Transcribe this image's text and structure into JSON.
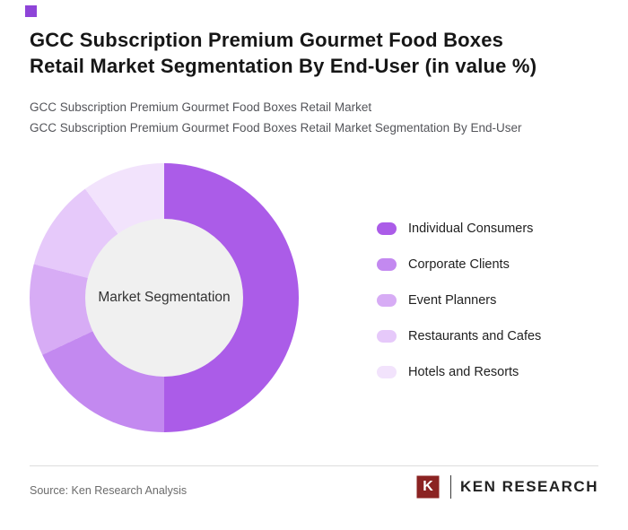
{
  "accent_color": "#8E44D8",
  "header": {
    "title_lines": [
      "GCC Subscription Premium Gourmet Food Boxes",
      "Retail Market Segmentation By End-User (in value %)"
    ],
    "subtitle_line1": "GCC Subscription Premium Gourmet Food Boxes Retail Market",
    "subtitle_line2": "GCC Subscription Premium Gourmet Food Boxes Retail Market Segmentation By End-User"
  },
  "chart_data": {
    "type": "pie",
    "donut": true,
    "center_label": "Market Segmentation",
    "categories": [
      "Individual Consumers",
      "Corporate Clients",
      "Event Planners",
      "Restaurants and Cafes",
      "Hotels and Resorts"
    ],
    "values": [
      50,
      18,
      11,
      11,
      10
    ],
    "colors": [
      "#AB5CE8",
      "#C389F0",
      "#D7ACF5",
      "#E6C9FA",
      "#F2E3FC"
    ],
    "hole_color": "#F0F0F0",
    "start_angle_deg": 0,
    "direction": "clockwise",
    "legend_position": "right",
    "value_labels_shown": false
  },
  "footer": {
    "source_text": "Source: Ken Research Analysis",
    "logo": {
      "mark_letter": "K",
      "brand_text": "KEN RESEARCH",
      "mark_color": "#8B2322"
    }
  }
}
